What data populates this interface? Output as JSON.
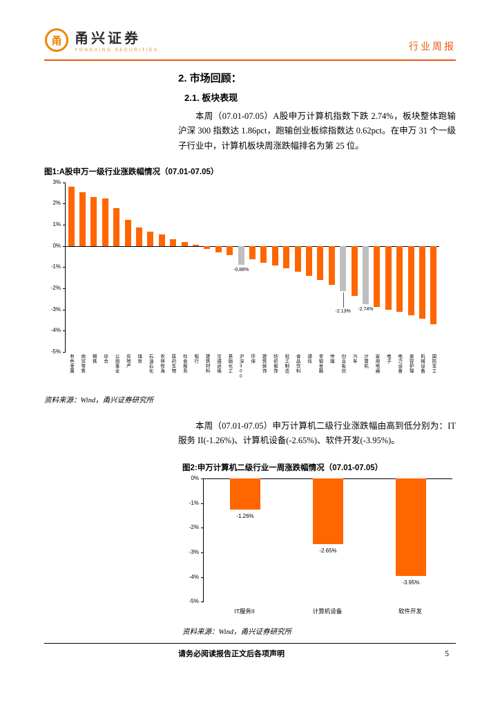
{
  "header": {
    "brand_name": "甬兴证券",
    "brand_sub": "YONGXING SECURITIES",
    "report_type": "行业周报"
  },
  "sections": {
    "h1": "2. 市场回顾：",
    "h2": "2.1. 板块表现",
    "para1": "本周（07.01-07.05）A股申万计算机指数下跌 2.74%，板块整体跑输沪深 300 指数达 1.86pct，跑输创业板综指数达 0.62pct。在申万 31 个一级子行业中，计算机板块周涨跌幅排名为第 25 位。",
    "para2": "本周（07.01-07.05）申万计算机二级行业涨跌幅由高到低分别为：IT 服务 II(-1.26%)、计算机设备(-2.65%)、软件开发(-3.95%)。"
  },
  "figures": {
    "fig1": {
      "title": "图1:A股申万一级行业涨跌幅情况（07.01-07.05）",
      "source": "资料来源：Wind，甬兴证券研究所"
    },
    "fig2": {
      "title": "图2:申万计算机二级行业一周涨跌幅情况（07.01-07.05）",
      "source": "资料来源：Wind，甬兴证券研究所"
    }
  },
  "footer": {
    "disclaimer": "请务必阅读报告正文后各项声明",
    "page_number": "5"
  },
  "colors": {
    "bar_orange": "#FF6600",
    "index_gray": "#BFBFBF",
    "brand_orange": "#F08300",
    "accent_orange": "#E8590C"
  },
  "chart_data": [
    {
      "type": "bar",
      "title": "图1:A股申万一级行业涨跌幅情况（07.01-07.05）",
      "ylim": [
        -5,
        3
      ],
      "yticks": [
        "3%",
        "2%",
        "1%",
        "0%",
        "-1%",
        "-2%",
        "-3%",
        "-4%",
        "-5%"
      ],
      "grid": false,
      "legend_position": "none",
      "series": [
        {
          "name": "有色金属",
          "value": 2.8
        },
        {
          "name": "商贸零售",
          "value": 2.52
        },
        {
          "name": "钢铁",
          "value": 2.3
        },
        {
          "name": "综合",
          "value": 2.24
        },
        {
          "name": "公用事业",
          "value": 1.78
        },
        {
          "name": "房地产",
          "value": 1.22
        },
        {
          "name": "煤炭",
          "value": 0.86
        },
        {
          "name": "石油石化",
          "value": 0.66
        },
        {
          "name": "农林牧渔",
          "value": 0.55
        },
        {
          "name": "医药生物",
          "value": 0.33
        },
        {
          "name": "社会服务",
          "value": 0.18
        },
        {
          "name": "银行",
          "value": 0.05
        },
        {
          "name": "建筑材料",
          "value": -0.15
        },
        {
          "name": "交通运输",
          "value": -0.3
        },
        {
          "name": "基础化工",
          "value": -0.45
        },
        {
          "name": "沪深300",
          "value": -0.88,
          "color": "gray",
          "label": "-0.88%"
        },
        {
          "name": "环保",
          "value": -0.62
        },
        {
          "name": "建筑装饰",
          "value": -0.78
        },
        {
          "name": "纺织服饰",
          "value": -0.92
        },
        {
          "name": "轻工制造",
          "value": -1.05
        },
        {
          "name": "食品饮料",
          "value": -1.22
        },
        {
          "name": "通信",
          "value": -1.4
        },
        {
          "name": "非银金融",
          "value": -1.6
        },
        {
          "name": "传媒",
          "value": -1.85
        },
        {
          "name": "创业板综",
          "value": -2.13,
          "color": "gray",
          "label": "-2.13%",
          "leader": true
        },
        {
          "name": "汽车",
          "value": -2.35
        },
        {
          "name": "计算机",
          "value": -2.74,
          "color": "gray",
          "label": "-2.74%"
        },
        {
          "name": "家用电器",
          "value": -2.88
        },
        {
          "name": "电子",
          "value": -3.0
        },
        {
          "name": "电力设备",
          "value": -3.12
        },
        {
          "name": "美容护理",
          "value": -3.28
        },
        {
          "name": "机械设备",
          "value": -3.45
        },
        {
          "name": "国防军工",
          "value": -3.7
        }
      ]
    },
    {
      "type": "bar",
      "title": "图2:申万计算机二级行业一周涨跌幅情况（07.01-07.05）",
      "ylim": [
        -5,
        0
      ],
      "yticks": [
        "0%",
        "-1%",
        "-2%",
        "-3%",
        "-4%",
        "-5%"
      ],
      "grid": false,
      "legend_position": "none",
      "categories": [
        "IT服务II",
        "计算机设备",
        "软件开发"
      ],
      "values": [
        -1.26,
        -2.65,
        -3.95
      ],
      "value_labels": [
        "-1.26%",
        "-2.65%",
        "-3.95%"
      ]
    }
  ]
}
